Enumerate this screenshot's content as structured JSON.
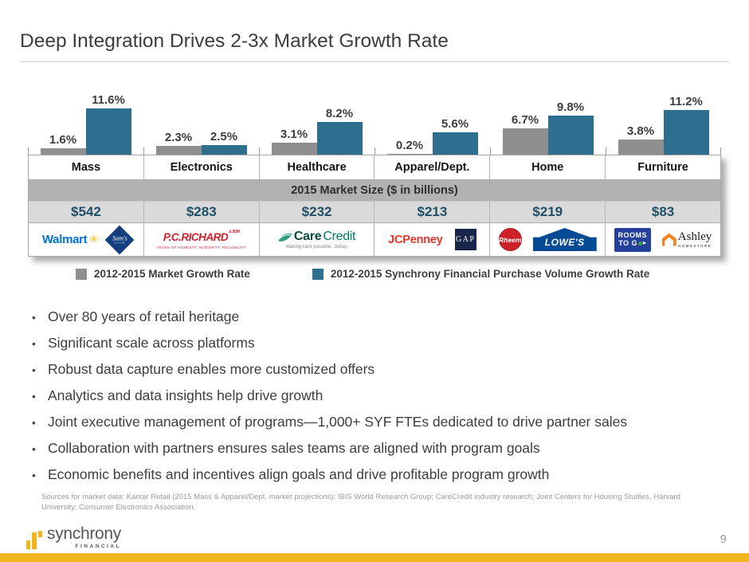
{
  "slide": {
    "title": "Deep Integration Drives 2-3x Market Growth Rate"
  },
  "chart_data": {
    "type": "bar",
    "title": "Category growth comparison with 2015 market size table",
    "categories": [
      "Mass",
      "Electronics",
      "Healthcare",
      "Apparel/Dept.",
      "Home",
      "Furniture"
    ],
    "series": [
      {
        "name": "2012-2015 Market Growth Rate",
        "color": "#8F8F8F",
        "values": [
          1.6,
          2.3,
          3.1,
          0.2,
          6.7,
          3.8
        ],
        "labels": [
          "1.6%",
          "2.3%",
          "3.1%",
          "0.2%",
          "6.7%",
          "3.8%"
        ]
      },
      {
        "name": "2012-2015 Synchrony Financial Purchase Volume Growth Rate",
        "color": "#2E6E8E",
        "values": [
          11.6,
          2.5,
          8.2,
          5.6,
          9.8,
          11.2
        ],
        "labels": [
          "11.6%",
          "2.5%",
          "8.2%",
          "5.6%",
          "9.8%",
          "11.2%"
        ]
      }
    ],
    "unit": "%",
    "ylim": [
      0,
      12
    ],
    "grid": false,
    "axis_labels": "none (data labels above bars only)",
    "legend_position": "bottom"
  },
  "market_table": {
    "band_label": "2015 Market Size ($ in billions)",
    "sizes": [
      "$542",
      "$283",
      "$232",
      "$213",
      "$219",
      "$83"
    ]
  },
  "logos": {
    "walmart": {
      "text": "Walmart",
      "spark_icon": "✳"
    },
    "sams_club": {
      "text": "Sam's",
      "sub": "CLUB"
    },
    "pc_richard": {
      "text": "P.C.RICHARD",
      "son": "& SON",
      "tagline": "YEARS OF HONESTY, INTEGRITY, RELIABILITY"
    },
    "carecredit": {
      "care": "Care",
      "credit": "Credit",
      "tagline": "Making care possible...today."
    },
    "jcpenney": {
      "text": "JCPenney"
    },
    "gap": {
      "text": "GAP"
    },
    "rheem": {
      "text": "Rheem"
    },
    "lowes": {
      "text": "LOWE'S"
    },
    "rooms_to_go": {
      "line1": "ROOMS",
      "line2": "TO G"
    },
    "ashley": {
      "text": "Ashley",
      "sub": "HOMESTORE"
    }
  },
  "bullets": [
    "Over 80 years of retail heritage",
    "Significant scale across platforms",
    "Robust data capture enables more customized offers",
    "Analytics and data insights help drive growth",
    "Joint executive management of programs—1,000+ SYF FTEs dedicated to drive partner sales",
    "Collaboration with partners ensures sales teams are aligned with program goals",
    "Economic benefits and incentives align goals and drive profitable program growth"
  ],
  "sources": "Sources for market data: Kantar Retail (2015 Mass & Apparel/Dept. market projections); IBIS World Research Group; CareCredit industry research; Joint Centers for Housing Studies, Harvard University; Consumer Electronics Association.",
  "footer": {
    "brand": "synchrony",
    "brand_sub": "FINANCIAL",
    "page": "9"
  },
  "colors": {
    "market_growth_bar": "#8F8F8F",
    "syf_growth_bar": "#2E6E8E",
    "accent_gold": "#F2B51D",
    "market_size_text": "#1F4F66"
  }
}
